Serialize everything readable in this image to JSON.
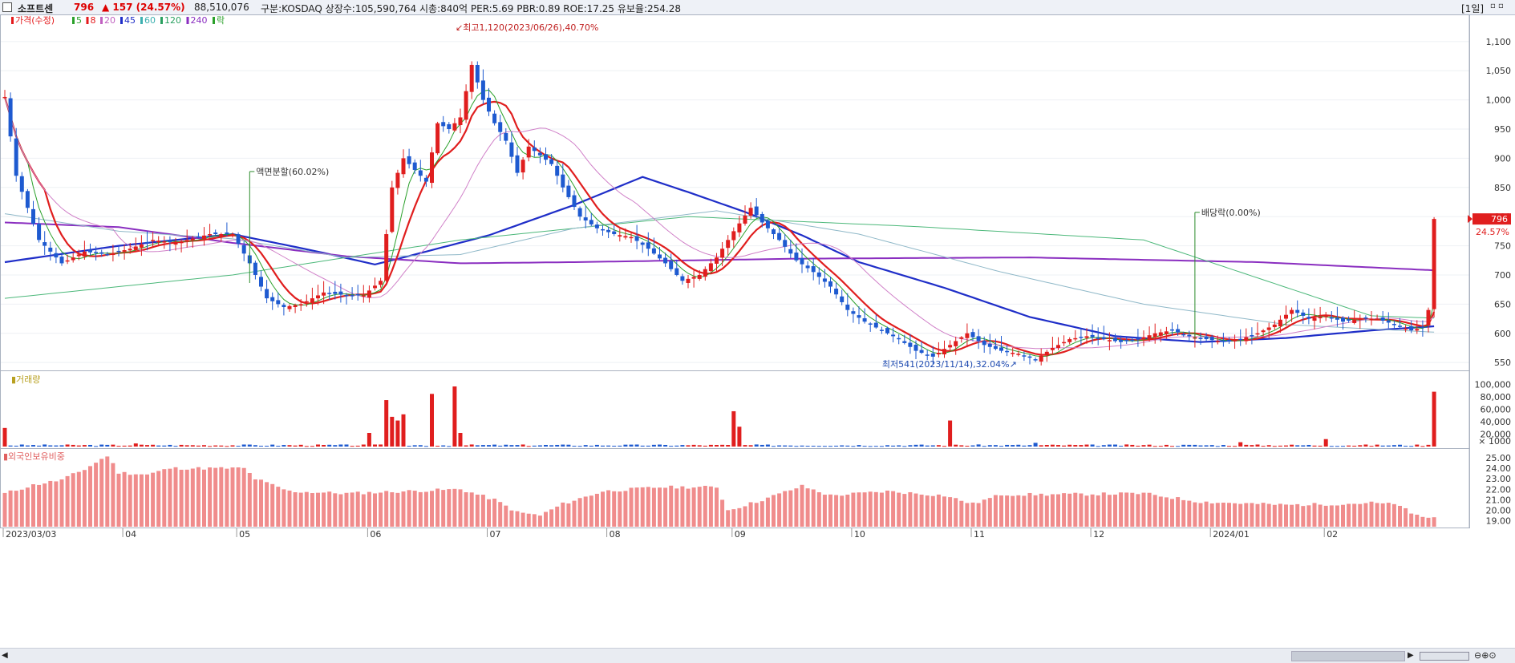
{
  "header": {
    "name": "소프트센",
    "price": "796",
    "change": "▲ 157 (24.57%)",
    "volume": "88,510,076",
    "info": "구분:KOSDAQ 상장수:105,590,764 시총:840억 PER:5.69 PBR:0.89 ROE:17.25 유보율:254.28",
    "period": "[1일]"
  },
  "legend": {
    "items": [
      {
        "label": "가격(수정)",
        "color": "#e41a1c"
      },
      {
        "label": "5",
        "color": "#2aa02a"
      },
      {
        "label": "8",
        "color": "#e41a1c"
      },
      {
        "label": "20",
        "color": "#c060c0"
      },
      {
        "label": "45",
        "color": "#1f2ec8"
      },
      {
        "label": "60",
        "color": "#3cb0b0"
      },
      {
        "label": "120",
        "color": "#2aa060"
      },
      {
        "label": "240",
        "color": "#8a2ec0"
      },
      {
        "label": "락",
        "color": "#2aa02a"
      }
    ]
  },
  "volume_panel": {
    "title": "거래량",
    "unit_label": "× 1000"
  },
  "foreign_panel": {
    "title": "외국인보유비중"
  },
  "chart_data": [
    {
      "type": "candlestick",
      "title": "",
      "x_labels": [
        "2023/03/03",
        "04",
        "05",
        "06",
        "07",
        "08",
        "09",
        "10",
        "11",
        "12",
        "2024/01",
        "02"
      ],
      "ylim": [
        520,
        1130
      ],
      "yticks": [
        550,
        600,
        650,
        700,
        750,
        800,
        850,
        900,
        950,
        1000,
        1050,
        1100
      ],
      "ytick_labels": [
        "550",
        "600",
        "650",
        "700",
        "750",
        "800",
        "850",
        "900",
        "950",
        "1,000",
        "1,050",
        "1,100"
      ],
      "last_price": 796,
      "last_change_pct": "24.57%",
      "close_anchors": [
        [
          0,
          1005
        ],
        [
          2,
          870
        ],
        [
          6,
          760
        ],
        [
          10,
          720
        ],
        [
          14,
          740
        ],
        [
          18,
          735
        ],
        [
          22,
          745
        ],
        [
          26,
          760
        ],
        [
          30,
          755
        ],
        [
          36,
          770
        ],
        [
          40,
          770
        ],
        [
          43,
          720
        ],
        [
          46,
          660
        ],
        [
          49,
          645
        ],
        [
          52,
          650
        ],
        [
          56,
          670
        ],
        [
          60,
          665
        ],
        [
          63,
          665
        ],
        [
          66,
          690
        ],
        [
          68,
          850
        ],
        [
          70,
          900
        ],
        [
          72,
          880
        ],
        [
          74,
          860
        ],
        [
          76,
          960
        ],
        [
          78,
          950
        ],
        [
          80,
          970
        ],
        [
          82,
          1060
        ],
        [
          84,
          1000
        ],
        [
          86,
          960
        ],
        [
          88,
          930
        ],
        [
          90,
          875
        ],
        [
          92,
          920
        ],
        [
          94,
          905
        ],
        [
          96,
          890
        ],
        [
          98,
          850
        ],
        [
          101,
          800
        ],
        [
          104,
          780
        ],
        [
          107,
          770
        ],
        [
          110,
          765
        ],
        [
          113,
          745
        ],
        [
          116,
          720
        ],
        [
          119,
          690
        ],
        [
          122,
          700
        ],
        [
          125,
          730
        ],
        [
          128,
          775
        ],
        [
          131,
          815
        ],
        [
          133,
          790
        ],
        [
          136,
          760
        ],
        [
          139,
          725
        ],
        [
          142,
          705
        ],
        [
          145,
          680
        ],
        [
          148,
          640
        ],
        [
          151,
          620
        ],
        [
          154,
          605
        ],
        [
          157,
          590
        ],
        [
          160,
          570
        ],
        [
          163,
          560
        ],
        [
          166,
          580
        ],
        [
          169,
          600
        ],
        [
          172,
          580
        ],
        [
          175,
          570
        ],
        [
          178,
          565
        ],
        [
          181,
          555
        ],
        [
          184,
          575
        ],
        [
          187,
          590
        ],
        [
          190,
          595
        ],
        [
          193,
          590
        ],
        [
          196,
          585
        ],
        [
          199,
          590
        ],
        [
          202,
          600
        ],
        [
          205,
          605
        ],
        [
          208,
          595
        ],
        [
          211,
          590
        ],
        [
          214,
          585
        ],
        [
          217,
          590
        ],
        [
          220,
          600
        ],
        [
          223,
          615
        ],
        [
          226,
          640
        ],
        [
          229,
          625
        ],
        [
          232,
          630
        ],
        [
          235,
          620
        ],
        [
          238,
          625
        ],
        [
          241,
          625
        ],
        [
          244,
          615
        ],
        [
          247,
          605
        ],
        [
          249,
          610
        ],
        [
          250,
          640
        ],
        [
          251,
          796
        ]
      ],
      "moving_averages": [
        {
          "name": "45",
          "anchors": [
            [
              0,
              722
            ],
            [
              20,
              750
            ],
            [
              40,
              770
            ],
            [
              55,
              740
            ],
            [
              65,
              718
            ],
            [
              70,
              730
            ],
            [
              85,
              768
            ],
            [
              100,
              820
            ],
            [
              112,
              868
            ],
            [
              120,
              842
            ],
            [
              130,
              808
            ],
            [
              140,
              768
            ],
            [
              150,
              722
            ],
            [
              165,
              678
            ],
            [
              180,
              628
            ],
            [
              195,
              595
            ],
            [
              210,
              585
            ],
            [
              225,
              592
            ],
            [
              240,
              605
            ],
            [
              251,
              612
            ]
          ]
        },
        {
          "name": "240",
          "anchors": [
            [
              0,
              790
            ],
            [
              20,
              782
            ],
            [
              40,
              755
            ],
            [
              60,
              732
            ],
            [
              80,
              720
            ],
            [
              100,
              722
            ],
            [
              140,
              728
            ],
            [
              180,
              730
            ],
            [
              220,
              722
            ],
            [
              251,
              708
            ]
          ]
        },
        {
          "name": "120",
          "anchors": [
            [
              0,
              660
            ],
            [
              40,
              700
            ],
            [
              80,
              760
            ],
            [
              120,
              800
            ],
            [
              160,
              783
            ],
            [
              200,
              760
            ],
            [
              240,
              630
            ],
            [
              251,
              626
            ]
          ]
        },
        {
          "name": "60",
          "anchors": [
            [
              0,
              805
            ],
            [
              20,
              775
            ],
            [
              40,
              762
            ],
            [
              60,
              730
            ],
            [
              80,
              735
            ],
            [
              100,
              780
            ],
            [
              125,
              810
            ],
            [
              150,
              770
            ],
            [
              175,
              705
            ],
            [
              200,
              650
            ],
            [
              225,
              615
            ],
            [
              251,
              602
            ]
          ]
        }
      ],
      "annotations": [
        {
          "text": "최고1,120(2023/06/26),40.70%",
          "x_index": 80,
          "y": 1120
        },
        {
          "text": "액면분할(60.02%)",
          "x_index": 43,
          "y": 880
        },
        {
          "text": "최저541(2023/11/14),32.04%",
          "x_index": 178,
          "y": 541
        },
        {
          "text": "배당락(0.00%)",
          "x_index": 209,
          "y": 810
        }
      ]
    },
    {
      "type": "bar",
      "title": "거래량",
      "ylim": [
        0,
        110000
      ],
      "yticks": [
        20000,
        40000,
        60000,
        80000,
        100000
      ],
      "ytick_labels": [
        "20,000",
        "40,000",
        "60,000",
        "80,000",
        "100,000"
      ],
      "spikes": [
        [
          0,
          30000
        ],
        [
          23,
          5000
        ],
        [
          64,
          22000
        ],
        [
          67,
          75000
        ],
        [
          68,
          48000
        ],
        [
          69,
          42000
        ],
        [
          70,
          52000
        ],
        [
          75,
          85000
        ],
        [
          79,
          97000
        ],
        [
          80,
          22000
        ],
        [
          128,
          57000
        ],
        [
          129,
          32000
        ],
        [
          166,
          42000
        ],
        [
          181,
          6000
        ],
        [
          217,
          7000
        ],
        [
          232,
          12000
        ],
        [
          251,
          88510
        ]
      ]
    },
    {
      "type": "bar",
      "title": "외국인보유비중",
      "ylim": [
        18.5,
        26
      ],
      "yticks": [
        19,
        20,
        21,
        22,
        23,
        24,
        25
      ],
      "ytick_labels": [
        "19.00",
        "20.00",
        "21.00",
        "22.00",
        "23.00",
        "24.00",
        "25.00"
      ],
      "anchors": [
        [
          0,
          21.6
        ],
        [
          5,
          22.4
        ],
        [
          10,
          22.9
        ],
        [
          14,
          23.9
        ],
        [
          18,
          25.2
        ],
        [
          20,
          23.6
        ],
        [
          25,
          23.4
        ],
        [
          29,
          24.0
        ],
        [
          42,
          24.0
        ],
        [
          44,
          23.0
        ],
        [
          50,
          21.8
        ],
        [
          60,
          21.6
        ],
        [
          70,
          21.8
        ],
        [
          80,
          22.0
        ],
        [
          86,
          21.0
        ],
        [
          90,
          19.8
        ],
        [
          94,
          19.5
        ],
        [
          98,
          20.6
        ],
        [
          105,
          21.8
        ],
        [
          115,
          22.2
        ],
        [
          125,
          22.2
        ],
        [
          127,
          20.0
        ],
        [
          132,
          20.8
        ],
        [
          140,
          22.3
        ],
        [
          145,
          21.4
        ],
        [
          155,
          21.8
        ],
        [
          165,
          21.4
        ],
        [
          170,
          20.6
        ],
        [
          175,
          21.5
        ],
        [
          185,
          21.5
        ],
        [
          200,
          21.6
        ],
        [
          210,
          20.8
        ],
        [
          225,
          20.5
        ],
        [
          235,
          20.6
        ],
        [
          240,
          20.7
        ],
        [
          245,
          20.5
        ],
        [
          247,
          19.6
        ],
        [
          250,
          19.3
        ],
        [
          251,
          19.3
        ]
      ]
    }
  ]
}
